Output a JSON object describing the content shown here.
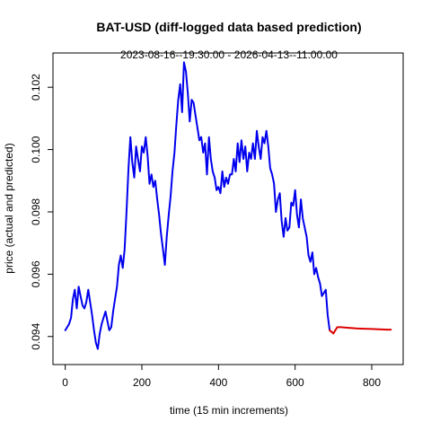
{
  "chart_data": {
    "type": "line",
    "title": "BAT-USD (diff-logged data based prediction)",
    "subtitle": "2023-08-16--19:30:00  -  2026-04-13--11:00:00",
    "xlabel": "time (15 min increments)",
    "ylabel": "price (actual and predicted)",
    "xlim": [
      -32,
      882
    ],
    "ylim": [
      0.0931,
      0.1031
    ],
    "xticks": [
      0,
      200,
      400,
      600,
      800
    ],
    "xtick_labels": [
      "0",
      "200",
      "400",
      "600",
      "800"
    ],
    "yticks": [
      0.094,
      0.096,
      0.098,
      0.1,
      0.102
    ],
    "ytick_labels": [
      "0.094",
      "0.096",
      "0.098",
      "0.100",
      "0.102"
    ],
    "grid": false,
    "series": [
      {
        "color": "#0000ee",
        "x": [
          0,
          5,
          10,
          15,
          20,
          25,
          30,
          35,
          40,
          45,
          50,
          55,
          60,
          65,
          70,
          75,
          80,
          85,
          90,
          95,
          100,
          105,
          110,
          115,
          120,
          125,
          130,
          135,
          140,
          145,
          150,
          155,
          160,
          165,
          170,
          175,
          180,
          185,
          190,
          195,
          200,
          205,
          210,
          215,
          220,
          225,
          230,
          235,
          240,
          245,
          250,
          255,
          260,
          265,
          270,
          275,
          280,
          285,
          290,
          295,
          300,
          305,
          310,
          315,
          320,
          325,
          330,
          335,
          340,
          345,
          350,
          355,
          360,
          365,
          370,
          375,
          380,
          385,
          390,
          395,
          400,
          405,
          410,
          415,
          420,
          425,
          430,
          435,
          440,
          445,
          450,
          455,
          460,
          465,
          470,
          475,
          480,
          485,
          490,
          495,
          500,
          505,
          510,
          515,
          520,
          525,
          530,
          535,
          540,
          545,
          550,
          555,
          560,
          565,
          570,
          575,
          580,
          585,
          590,
          595,
          600,
          605,
          610,
          615,
          620,
          625,
          630,
          635,
          640,
          645,
          650,
          655,
          660,
          665,
          670,
          675,
          680,
          685,
          690
        ],
        "values": [
          0.0942,
          0.0943,
          0.0944,
          0.0946,
          0.0952,
          0.0955,
          0.0949,
          0.0956,
          0.0953,
          0.095,
          0.0949,
          0.0951,
          0.0955,
          0.0951,
          0.0947,
          0.0942,
          0.0938,
          0.0936,
          0.0941,
          0.0944,
          0.0946,
          0.0948,
          0.0945,
          0.0942,
          0.0943,
          0.0948,
          0.0952,
          0.0956,
          0.0963,
          0.0966,
          0.0962,
          0.0968,
          0.098,
          0.0994,
          0.1004,
          0.0996,
          0.0991,
          0.1001,
          0.0997,
          0.0993,
          0.1001,
          0.0999,
          0.1004,
          0.0998,
          0.0989,
          0.0992,
          0.0988,
          0.099,
          0.0984,
          0.0979,
          0.0973,
          0.0968,
          0.0963,
          0.0972,
          0.0979,
          0.0985,
          0.0993,
          0.0999,
          0.1008,
          0.1016,
          0.1021,
          0.1012,
          0.1028,
          0.1025,
          0.1018,
          0.1009,
          0.1016,
          0.1015,
          0.1011,
          0.1007,
          0.1003,
          0.1004,
          0.0999,
          0.1002,
          0.0992,
          0.1004,
          0.0997,
          0.0993,
          0.0991,
          0.0987,
          0.0988,
          0.0986,
          0.0993,
          0.0988,
          0.0991,
          0.0989,
          0.0992,
          0.0992,
          0.0997,
          0.0993,
          0.1002,
          0.0996,
          0.1003,
          0.0997,
          0.1001,
          0.0993,
          0.0999,
          0.0997,
          0.1002,
          0.0997,
          0.1006,
          0.1001,
          0.0997,
          0.1004,
          0.1002,
          0.1006,
          0.1001,
          0.0994,
          0.0992,
          0.0989,
          0.098,
          0.0984,
          0.0986,
          0.0977,
          0.0972,
          0.0978,
          0.0974,
          0.0975,
          0.0983,
          0.0982,
          0.0987,
          0.0979,
          0.0975,
          0.0984,
          0.0978,
          0.0975,
          0.0972,
          0.0966,
          0.0964,
          0.0967,
          0.096,
          0.0962,
          0.0959,
          0.0957,
          0.0953,
          0.0954,
          0.0955,
          0.0947,
          0.0942
        ]
      },
      {
        "color": "#dd0000",
        "x": [
          690,
          700,
          710,
          720,
          740,
          760,
          780,
          800,
          820,
          840,
          850
        ],
        "values": [
          0.0942,
          0.0941,
          0.0943,
          0.0943,
          0.09428,
          0.09426,
          0.09425,
          0.09424,
          0.09423,
          0.09422,
          0.09422
        ]
      }
    ]
  }
}
